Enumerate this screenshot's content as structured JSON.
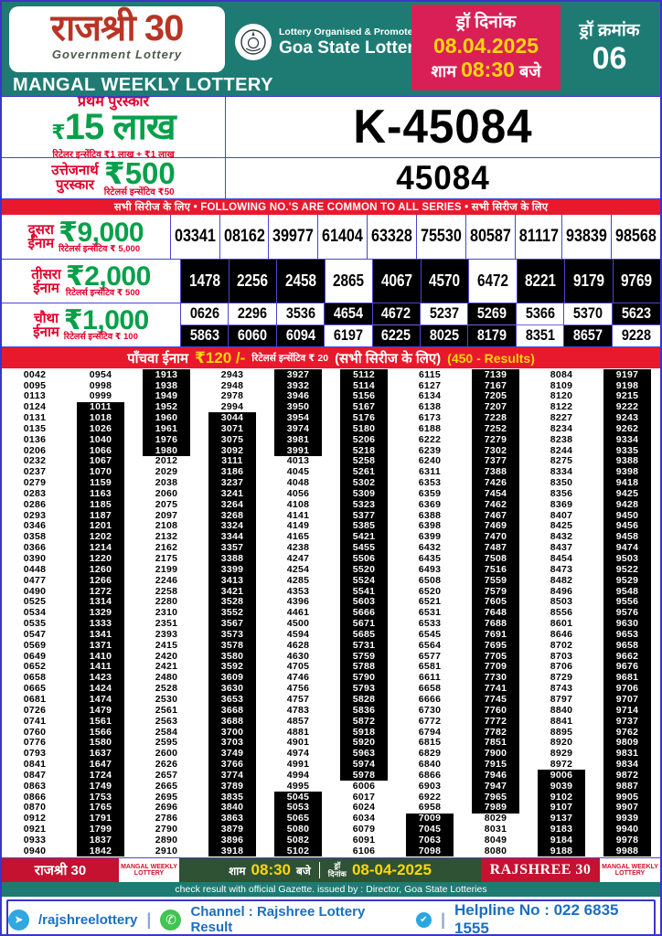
{
  "header": {
    "logo_title": "राजश्री 30",
    "logo_subtitle": "Government Lottery",
    "org_line1": "Lottery Organised & Promoted By",
    "org_line2": "Goa State Lotteries",
    "draw_date_label": "ड्रॉ दिनांक",
    "draw_date": "08.04.2025",
    "draw_time_prefix": "शाम",
    "draw_time": "08:30",
    "draw_time_suffix": "बजे",
    "draw_number_label": "ड्रॉ क्रमांक",
    "draw_number": "06",
    "banner": "MANGAL WEEKLY LOTTERY"
  },
  "first_prize": {
    "label": "प्रथम पुरस्कार",
    "rupee": "₹",
    "amount": "15",
    "unit": "लाख",
    "incentive": "रिटेलर इन्सेंटिव ₹1 लाख + ₹1 लाख",
    "winning_number": "K-45084"
  },
  "consolation": {
    "label_line1": "उत्तेजनार्थ",
    "label_line2": "पुरस्कार",
    "amount": "₹500",
    "incentive": "रिटेलर्स इन्सेंटिव ₹50",
    "winning_number": "45084"
  },
  "common_bar": "सभी सिरीज के लिए  •  FOLLOWING NO.'S ARE COMMON TO ALL SERIES  •  सभी सिरीज के लिए",
  "second_prize": {
    "label_line1": "दूसरा",
    "label_line2": "ईनाम",
    "amount": "₹9,000",
    "incentive": "रिटेलर्स इन्सेंटिव ₹ 5,000",
    "numbers": [
      "03341",
      "08162",
      "39977",
      "61404",
      "63328",
      "75530",
      "80587",
      "81117",
      "93839",
      "98568"
    ]
  },
  "third_prize": {
    "label_line1": "तीसरा",
    "label_line2": "ईनाम",
    "amount": "₹2,000",
    "incentive": "रिटेलर्स इन्सेंटिव ₹ 500",
    "numbers": [
      "1478",
      "2256",
      "2458",
      "2865",
      "4067",
      "4570",
      "6472",
      "8221",
      "9179",
      "9769"
    ],
    "dark": [
      true,
      true,
      true,
      false,
      true,
      true,
      false,
      true,
      true,
      true
    ]
  },
  "fourth_prize": {
    "label_line1": "चौथा",
    "label_line2": "ईनाम",
    "amount": "₹1,000",
    "incentive": "रिटेलर्स इन्सेंटिव ₹ 100",
    "rows": [
      [
        "0626",
        "2296",
        "3536",
        "4654",
        "4672",
        "5237",
        "5269",
        "5366",
        "5370",
        "5623"
      ],
      [
        "5863",
        "6060",
        "6094",
        "6197",
        "6225",
        "8025",
        "8179",
        "8351",
        "8657",
        "9228"
      ]
    ],
    "dark": [
      [
        false,
        false,
        false,
        true,
        true,
        false,
        true,
        false,
        false,
        true
      ],
      [
        true,
        true,
        true,
        false,
        true,
        true,
        true,
        false,
        true,
        false
      ]
    ]
  },
  "fifth_prize": {
    "label": "पाँचवा ईनाम",
    "amount": "₹120 /-",
    "incentive": "रिटेलर्स इन्सेंटिव ₹ 20",
    "series_note": "(सभी सिरीज के लिए)",
    "results_note": "(450 - Results)"
  },
  "results_rows": [
    [
      "0042",
      "0954",
      "1913",
      "2943",
      "3927",
      "5112",
      "6115",
      "7139",
      "8084",
      "9197"
    ],
    [
      "0095",
      "0998",
      "1938",
      "2948",
      "3932",
      "5114",
      "6127",
      "7167",
      "8109",
      "9198"
    ],
    [
      "0113",
      "0999",
      "1949",
      "2978",
      "3946",
      "5156",
      "6134",
      "7205",
      "8120",
      "9215"
    ],
    [
      "0124",
      "1011",
      "1952",
      "2994",
      "3950",
      "5167",
      "6138",
      "7207",
      "8122",
      "9222"
    ],
    [
      "0131",
      "1018",
      "1960",
      "3044",
      "3954",
      "5176",
      "6173",
      "7228",
      "8227",
      "9243"
    ],
    [
      "0135",
      "1026",
      "1961",
      "3071",
      "3974",
      "5180",
      "6188",
      "7252",
      "8234",
      "9262"
    ],
    [
      "0136",
      "1040",
      "1976",
      "3075",
      "3981",
      "5206",
      "6222",
      "7279",
      "8238",
      "9334"
    ],
    [
      "0206",
      "1066",
      "1980",
      "3092",
      "3991",
      "5218",
      "6239",
      "7302",
      "8244",
      "9335"
    ],
    [
      "0232",
      "1067",
      "2012",
      "3111",
      "4013",
      "5258",
      "6240",
      "7377",
      "8275",
      "9388"
    ],
    [
      "0237",
      "1070",
      "2029",
      "3186",
      "4045",
      "5261",
      "6311",
      "7388",
      "8334",
      "9398"
    ],
    [
      "0279",
      "1159",
      "2038",
      "3237",
      "4048",
      "5302",
      "6353",
      "7426",
      "8350",
      "9418"
    ],
    [
      "0283",
      "1163",
      "2060",
      "3241",
      "4056",
      "5309",
      "6359",
      "7454",
      "8356",
      "9425"
    ],
    [
      "0286",
      "1185",
      "2075",
      "3264",
      "4108",
      "5323",
      "6369",
      "7462",
      "8369",
      "9428"
    ],
    [
      "0293",
      "1187",
      "2097",
      "3268",
      "4141",
      "5377",
      "6388",
      "7467",
      "8407",
      "9450"
    ],
    [
      "0346",
      "1201",
      "2108",
      "3324",
      "4149",
      "5385",
      "6398",
      "7469",
      "8425",
      "9456"
    ],
    [
      "0358",
      "1202",
      "2132",
      "3344",
      "4165",
      "5421",
      "6399",
      "7470",
      "8432",
      "9458"
    ],
    [
      "0366",
      "1214",
      "2162",
      "3357",
      "4238",
      "5455",
      "6432",
      "7487",
      "8437",
      "9474"
    ],
    [
      "0390",
      "1220",
      "2175",
      "3388",
      "4247",
      "5506",
      "6435",
      "7508",
      "8454",
      "9503"
    ],
    [
      "0448",
      "1260",
      "2199",
      "3399",
      "4254",
      "5520",
      "6493",
      "7516",
      "8473",
      "9522"
    ],
    [
      "0477",
      "1266",
      "2246",
      "3413",
      "4285",
      "5524",
      "6508",
      "7559",
      "8482",
      "9529"
    ],
    [
      "0490",
      "1272",
      "2258",
      "3421",
      "4353",
      "5541",
      "6520",
      "7579",
      "8496",
      "9548"
    ],
    [
      "0525",
      "1314",
      "2280",
      "3528",
      "4396",
      "5603",
      "6521",
      "7605",
      "8503",
      "9556"
    ],
    [
      "0534",
      "1329",
      "2310",
      "3552",
      "4461",
      "5666",
      "6531",
      "7648",
      "8556",
      "9576"
    ],
    [
      "0535",
      "1333",
      "2351",
      "3567",
      "4500",
      "5671",
      "6533",
      "7688",
      "8601",
      "9630"
    ],
    [
      "0547",
      "1341",
      "2393",
      "3573",
      "4594",
      "5685",
      "6545",
      "7691",
      "8646",
      "9653"
    ],
    [
      "0569",
      "1371",
      "2415",
      "3578",
      "4628",
      "5731",
      "6564",
      "7695",
      "8702",
      "9658"
    ],
    [
      "0649",
      "1410",
      "2420",
      "3580",
      "4630",
      "5759",
      "6577",
      "7705",
      "8703",
      "9662"
    ],
    [
      "0652",
      "1411",
      "2421",
      "3592",
      "4705",
      "5788",
      "6581",
      "7709",
      "8706",
      "9676"
    ],
    [
      "0658",
      "1423",
      "2480",
      "3609",
      "4746",
      "5790",
      "6611",
      "7730",
      "8729",
      "9681"
    ],
    [
      "0665",
      "1424",
      "2528",
      "3630",
      "4756",
      "5793",
      "6658",
      "7741",
      "8743",
      "9706"
    ],
    [
      "0681",
      "1474",
      "2530",
      "3653",
      "4757",
      "5828",
      "6666",
      "7745",
      "8797",
      "9707"
    ],
    [
      "0726",
      "1479",
      "2561",
      "3668",
      "4783",
      "5836",
      "6730",
      "7760",
      "8840",
      "9714"
    ],
    [
      "0741",
      "1561",
      "2563",
      "3688",
      "4857",
      "5872",
      "6772",
      "7772",
      "8841",
      "9737"
    ],
    [
      "0760",
      "1566",
      "2584",
      "3700",
      "4881",
      "5918",
      "6794",
      "7782",
      "8895",
      "9762"
    ],
    [
      "0776",
      "1580",
      "2595",
      "3703",
      "4901",
      "5920",
      "6815",
      "7851",
      "8920",
      "9809"
    ],
    [
      "0793",
      "1637",
      "2600",
      "3749",
      "4974",
      "5963",
      "6829",
      "7900",
      "8929",
      "9831"
    ],
    [
      "0841",
      "1647",
      "2626",
      "3766",
      "4991",
      "5974",
      "6840",
      "7915",
      "8972",
      "9834"
    ],
    [
      "0847",
      "1724",
      "2657",
      "3774",
      "4994",
      "5978",
      "6866",
      "7946",
      "9006",
      "9872"
    ],
    [
      "0863",
      "1749",
      "2665",
      "3789",
      "4995",
      "6006",
      "6903",
      "7947",
      "9039",
      "9887"
    ],
    [
      "0866",
      "1753",
      "2695",
      "3835",
      "5045",
      "6017",
      "6922",
      "7965",
      "9102",
      "9905"
    ],
    [
      "0870",
      "1765",
      "2696",
      "3840",
      "5053",
      "6024",
      "6958",
      "7989",
      "9107",
      "9907"
    ],
    [
      "0912",
      "1791",
      "2786",
      "3863",
      "5065",
      "6034",
      "7009",
      "8029",
      "9137",
      "9939"
    ],
    [
      "0921",
      "1799",
      "2790",
      "3879",
      "5080",
      "6079",
      "7045",
      "8031",
      "9183",
      "9940"
    ],
    [
      "0933",
      "1837",
      "2890",
      "3896",
      "5082",
      "6091",
      "7063",
      "8049",
      "9184",
      "9978"
    ],
    [
      "0940",
      "1842",
      "2910",
      "3918",
      "5102",
      "6106",
      "7098",
      "8080",
      "9188",
      "9988"
    ]
  ],
  "footer": {
    "left_hindi": "राजश्री 30",
    "weekly_small": "MANGAL WEEKLY LOTTERY",
    "time_prefix": "शाम",
    "time": "08:30",
    "time_suffix": "बजे",
    "date_label_1": "ड्रॉ",
    "date_label_2": "दिनांक",
    "date": "08-04-2025",
    "right_eng": "RAJSHREE 30",
    "gazette_line": "check result with official Gazette. issued by : Director, Goa State Lotteries"
  },
  "contact": {
    "telegram": "/rajshreelottery",
    "channel": "Channel : Rajshree Lottery Result",
    "helpline": "Helpline No : 022 6835 1555"
  }
}
